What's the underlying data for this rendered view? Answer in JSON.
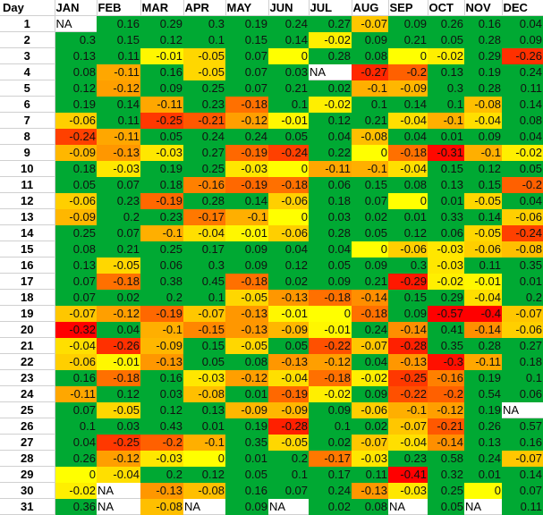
{
  "header": {
    "day_label": "Day",
    "months": [
      "JAN",
      "FEB",
      "MAR",
      "APR",
      "MAY",
      "JUN",
      "JUL",
      "AUG",
      "SEP",
      "OCT",
      "NOV",
      "DEC"
    ]
  },
  "colors": {
    "positive": "#00a933",
    "zero": "#ffff00",
    "most_negative": "#ff0000"
  },
  "chart_data": {
    "type": "heatmap",
    "x": [
      "JAN",
      "FEB",
      "MAR",
      "APR",
      "MAY",
      "JUN",
      "JUL",
      "AUG",
      "SEP",
      "OCT",
      "NOV",
      "DEC"
    ],
    "y_label": "Day",
    "rows": [
      {
        "day": "1",
        "values": [
          "NA",
          "0.16",
          "0.29",
          "0.3",
          "0.19",
          "0.24",
          "0.27",
          "-0.07",
          "0.09",
          "0.26",
          "0.16",
          "0.04"
        ]
      },
      {
        "day": "2",
        "values": [
          "0.3",
          "0.15",
          "0.12",
          "0.1",
          "0.15",
          "0.14",
          "-0.02",
          "0.09",
          "0.21",
          "0.05",
          "0.28",
          "0.09"
        ]
      },
      {
        "day": "3",
        "values": [
          "0.13",
          "0.11",
          "-0.01",
          "-0.05",
          "0.07",
          "0",
          "0.28",
          "0.08",
          "0",
          "-0.02",
          "0.29",
          "-0.26"
        ]
      },
      {
        "day": "4",
        "values": [
          "0.08",
          "-0.11",
          "0.16",
          "-0.05",
          "0.07",
          "0.03",
          "NA",
          "-0.27",
          "-0.2",
          "0.13",
          "0.19",
          "0.24"
        ]
      },
      {
        "day": "5",
        "values": [
          "0.12",
          "-0.12",
          "0.09",
          "0.25",
          "0.07",
          "0.21",
          "0.02",
          "-0.1",
          "-0.09",
          "0.3",
          "0.28",
          "0.11"
        ]
      },
      {
        "day": "6",
        "values": [
          "0.19",
          "0.14",
          "-0.11",
          "0.23",
          "-0.18",
          "0.1",
          "-0.02",
          "0.1",
          "0.14",
          "0.1",
          "-0.08",
          "0.14"
        ]
      },
      {
        "day": "7",
        "values": [
          "-0.06",
          "0.11",
          "-0.25",
          "-0.21",
          "-0.12",
          "-0.01",
          "0.12",
          "0.21",
          "-0.04",
          "-0.1",
          "-0.04",
          "0.08"
        ]
      },
      {
        "day": "8",
        "values": [
          "-0.24",
          "-0.11",
          "0.05",
          "0.24",
          "0.24",
          "0.05",
          "0.04",
          "-0.08",
          "0.04",
          "0.01",
          "0.09",
          "0.04"
        ]
      },
      {
        "day": "9",
        "values": [
          "-0.09",
          "-0.13",
          "-0.03",
          "0.27",
          "-0.19",
          "-0.24",
          "0.22",
          "0",
          "-0.18",
          "-0.31",
          "-0.1",
          "-0.02"
        ]
      },
      {
        "day": "10",
        "values": [
          "0.18",
          "-0.03",
          "0.19",
          "0.25",
          "-0.03",
          "0",
          "-0.11",
          "-0.1",
          "-0.04",
          "0.15",
          "0.12",
          "0.05"
        ]
      },
      {
        "day": "11",
        "values": [
          "0.05",
          "0.07",
          "0.18",
          "-0.16",
          "-0.19",
          "-0.18",
          "0.06",
          "0.15",
          "0.08",
          "0.13",
          "0.15",
          "-0.2"
        ]
      },
      {
        "day": "12",
        "values": [
          "-0.06",
          "0.23",
          "-0.19",
          "0.28",
          "0.14",
          "-0.06",
          "0.18",
          "0.07",
          "0",
          "0.01",
          "-0.05",
          "0.04"
        ]
      },
      {
        "day": "13",
        "values": [
          "-0.09",
          "0.2",
          "0.23",
          "-0.17",
          "-0.1",
          "0",
          "0.03",
          "0.02",
          "0.01",
          "0.33",
          "0.14",
          "-0.06"
        ]
      },
      {
        "day": "14",
        "values": [
          "0.25",
          "0.07",
          "-0.1",
          "-0.04",
          "-0.01",
          "-0.06",
          "0.28",
          "0.05",
          "0.12",
          "0.06",
          "-0.05",
          "-0.24"
        ]
      },
      {
        "day": "15",
        "values": [
          "0.08",
          "0.21",
          "0.25",
          "0.17",
          "0.09",
          "0.04",
          "0.04",
          "0",
          "-0.06",
          "-0.03",
          "-0.06",
          "-0.08"
        ]
      },
      {
        "day": "16",
        "values": [
          "0.13",
          "-0.05",
          "0.06",
          "0.3",
          "0.09",
          "0.12",
          "0.05",
          "0.09",
          "0.3",
          "-0.03",
          "0.11",
          "0.35"
        ]
      },
      {
        "day": "17",
        "values": [
          "0.07",
          "-0.18",
          "0.38",
          "0.45",
          "-0.18",
          "0.02",
          "0.09",
          "0.21",
          "-0.29",
          "-0.02",
          "-0.01",
          "0.01"
        ]
      },
      {
        "day": "18",
        "values": [
          "0.07",
          "0.02",
          "0.2",
          "0.1",
          "-0.05",
          "-0.13",
          "-0.18",
          "-0.14",
          "0.15",
          "0.29",
          "-0.04",
          "0.2"
        ]
      },
      {
        "day": "19",
        "values": [
          "-0.07",
          "-0.12",
          "-0.19",
          "-0.07",
          "-0.13",
          "-0.01",
          "0",
          "-0.18",
          "0.09",
          "-0.57",
          "-0.4",
          "-0.07"
        ]
      },
      {
        "day": "20",
        "values": [
          "-0.32",
          "0.04",
          "-0.1",
          "-0.15",
          "-0.13",
          "-0.09",
          "-0.01",
          "0.24",
          "-0.14",
          "0.41",
          "-0.14",
          "-0.06"
        ]
      },
      {
        "day": "21",
        "values": [
          "-0.04",
          "-0.26",
          "-0.09",
          "0.15",
          "-0.05",
          "0.05",
          "-0.22",
          "-0.07",
          "-0.28",
          "0.35",
          "0.28",
          "0.27"
        ]
      },
      {
        "day": "22",
        "values": [
          "-0.06",
          "-0.01",
          "-0.13",
          "0.05",
          "0.08",
          "-0.13",
          "-0.12",
          "0.04",
          "-0.13",
          "-0.3",
          "-0.11",
          "0.18"
        ]
      },
      {
        "day": "23",
        "values": [
          "0.16",
          "-0.18",
          "0.16",
          "-0.03",
          "-0.12",
          "-0.04",
          "-0.18",
          "-0.02",
          "-0.25",
          "-0.16",
          "0.19",
          "0.1"
        ]
      },
      {
        "day": "24",
        "values": [
          "-0.11",
          "0.12",
          "0.03",
          "-0.08",
          "0.01",
          "-0.19",
          "-0.02",
          "0.09",
          "-0.22",
          "-0.2",
          "0.54",
          "0.06"
        ]
      },
      {
        "day": "25",
        "values": [
          "0.07",
          "-0.05",
          "0.12",
          "0.13",
          "-0.09",
          "-0.09",
          "0.09",
          "-0.06",
          "-0.1",
          "-0.12",
          "0.19",
          "NA"
        ]
      },
      {
        "day": "26",
        "values": [
          "0.1",
          "0.03",
          "0.43",
          "0.01",
          "0.19",
          "-0.28",
          "0.1",
          "0.02",
          "-0.07",
          "-0.21",
          "0.26",
          "0.57"
        ]
      },
      {
        "day": "27",
        "values": [
          "0.04",
          "-0.25",
          "-0.2",
          "-0.1",
          "0.35",
          "-0.05",
          "0.02",
          "-0.07",
          "-0.04",
          "-0.14",
          "0.13",
          "0.16"
        ]
      },
      {
        "day": "28",
        "values": [
          "0.26",
          "-0.12",
          "-0.03",
          "0",
          "0.01",
          "0.2",
          "-0.17",
          "-0.03",
          "0.23",
          "0.58",
          "0.24",
          "-0.07"
        ]
      },
      {
        "day": "29",
        "values": [
          "0",
          "-0.04",
          "0.2",
          "0.12",
          "0.05",
          "0.1",
          "0.17",
          "0.11",
          "-0.41",
          "0.32",
          "0.01",
          "0.14"
        ]
      },
      {
        "day": "30",
        "values": [
          "-0.02",
          "NA",
          "-0.13",
          "-0.08",
          "0.16",
          "0.07",
          "0.24",
          "-0.13",
          "-0.03",
          "0.25",
          "0",
          "0.07"
        ]
      },
      {
        "day": "31",
        "values": [
          "0.36",
          "NA",
          "-0.08",
          "NA",
          "0.09",
          "NA",
          "0.02",
          "0.08",
          "NA",
          "0.05",
          "NA",
          "0.11"
        ]
      }
    ]
  }
}
